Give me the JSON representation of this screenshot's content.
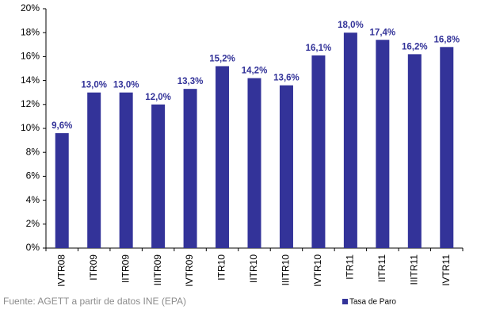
{
  "chart_data": {
    "type": "bar",
    "categories": [
      "IVTR08",
      "ITR09",
      "IITR09",
      "IIITR09",
      "IVTR09",
      "ITR10",
      "IITR10",
      "IIITR10",
      "IVTR10",
      "ITR11",
      "IITR11",
      "IIITR11",
      "IVTR11"
    ],
    "series": [
      {
        "name": "Tasa de Paro",
        "color": "#333399",
        "values": [
          9.6,
          13.0,
          13.0,
          12.0,
          13.3,
          15.2,
          14.2,
          13.6,
          16.1,
          18.0,
          17.4,
          16.2,
          16.8
        ],
        "value_labels": [
          "9,6%",
          "13,0%",
          "13,0%",
          "12,0%",
          "13,3%",
          "15,2%",
          "14,2%",
          "13,6%",
          "16,1%",
          "18,0%",
          "17,4%",
          "16,2%",
          "16,8%"
        ]
      }
    ],
    "ylim": [
      0,
      20
    ],
    "yticks": [
      {
        "value": 0,
        "label": "0%"
      },
      {
        "value": 2,
        "label": "2%"
      },
      {
        "value": 4,
        "label": "4%"
      },
      {
        "value": 6,
        "label": "6%"
      },
      {
        "value": 8,
        "label": "8%"
      },
      {
        "value": 10,
        "label": "10%"
      },
      {
        "value": 12,
        "label": "12%"
      },
      {
        "value": 14,
        "label": "14%"
      },
      {
        "value": 16,
        "label": "16%"
      },
      {
        "value": 18,
        "label": "18%"
      },
      {
        "value": 20,
        "label": "20%"
      }
    ],
    "grid": false,
    "legend": "bottom-right",
    "source": "Fuente: AGETT a partir de datos INE (EPA)"
  }
}
